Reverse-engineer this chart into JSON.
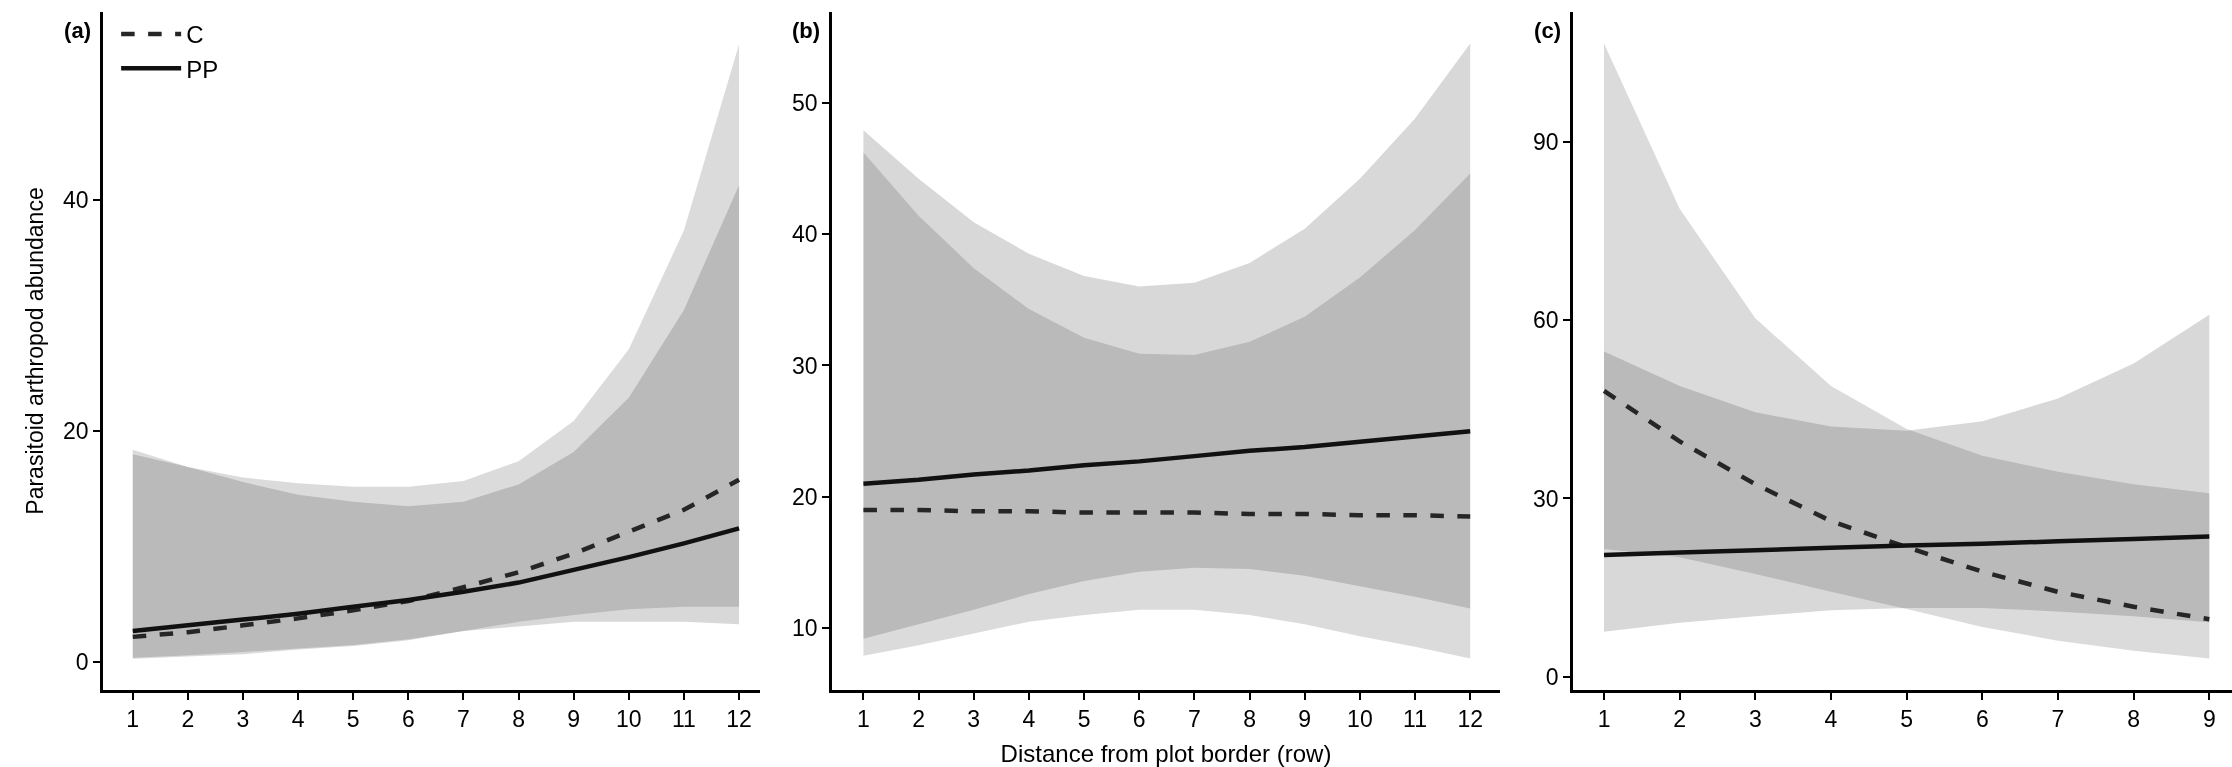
{
  "chart_data": [
    {
      "type": "line",
      "title": "(a)",
      "ylabel": "Parasitoid arthropod abundance",
      "x": [
        1,
        2,
        3,
        4,
        5,
        6,
        7,
        8,
        9,
        10,
        11,
        12
      ],
      "xlim": [
        0.46,
        12.38
      ],
      "xticks": [
        1,
        2,
        3,
        4,
        5,
        6,
        7,
        8,
        9,
        10,
        11,
        12
      ],
      "ylim": [
        -2.4,
        56.3
      ],
      "yticks": [
        0,
        20,
        40
      ],
      "grid": false,
      "legend": "top left",
      "marker": "none",
      "series": [
        {
          "name": "C",
          "color": "#262626",
          "line_style": "dashed",
          "values": [
            2.2,
            2.6,
            3.2,
            3.8,
            4.5,
            5.3,
            6.5,
            7.8,
            9.4,
            11.3,
            13.2,
            15.8
          ],
          "lower": [
            0.4,
            0.6,
            0.9,
            1.2,
            1.5,
            2.0,
            2.7,
            3.5,
            4.1,
            4.6,
            4.8,
            4.8
          ],
          "upper": [
            18.4,
            16.9,
            16.0,
            15.5,
            15.2,
            15.2,
            15.7,
            17.4,
            20.9,
            27.1,
            37.4,
            53.5
          ]
        },
        {
          "name": "PP",
          "color": "#111111",
          "line_style": "solid",
          "values": [
            2.7,
            3.2,
            3.7,
            4.2,
            4.8,
            5.4,
            6.1,
            6.9,
            8.0,
            9.1,
            10.3,
            11.6
          ],
          "lower": [
            0.3,
            0.5,
            0.7,
            1.1,
            1.4,
            1.9,
            2.7,
            3.1,
            3.5,
            3.5,
            3.5,
            3.3
          ],
          "upper": [
            18.0,
            16.9,
            15.6,
            14.5,
            13.9,
            13.5,
            13.9,
            15.4,
            18.2,
            22.9,
            30.5,
            41.3
          ]
        }
      ]
    },
    {
      "type": "line",
      "title": "(b)",
      "xlabel": "Distance from plot border (row)",
      "x": [
        1,
        2,
        3,
        4,
        5,
        6,
        7,
        8,
        9,
        10,
        11,
        12
      ],
      "xlim": [
        0.43,
        12.54
      ],
      "xticks": [
        1,
        2,
        3,
        4,
        5,
        6,
        7,
        8,
        9,
        10,
        11,
        12
      ],
      "ylim": [
        5.3,
        56.9
      ],
      "yticks": [
        10,
        20,
        30,
        40,
        50
      ],
      "grid": false,
      "legend": false,
      "marker": "none",
      "series": [
        {
          "color": "#262626",
          "line_style": "dashed",
          "values": [
            19.0,
            19.0,
            18.9,
            18.9,
            18.8,
            18.8,
            18.8,
            18.7,
            18.7,
            18.6,
            18.6,
            18.5
          ],
          "lower": [
            7.9,
            8.7,
            9.6,
            10.5,
            11.0,
            11.4,
            11.4,
            11.0,
            10.3,
            9.4,
            8.6,
            7.7
          ],
          "upper": [
            46.2,
            41.4,
            37.4,
            34.3,
            32.1,
            30.9,
            30.8,
            31.8,
            33.7,
            36.7,
            40.3,
            44.6
          ]
        },
        {
          "color": "#111111",
          "line_style": "solid",
          "values": [
            21.0,
            21.3,
            21.7,
            22.0,
            22.4,
            22.7,
            23.1,
            23.5,
            23.8,
            24.2,
            24.6,
            25.0
          ],
          "lower": [
            9.2,
            10.3,
            11.4,
            12.6,
            13.6,
            14.3,
            14.6,
            14.5,
            14.0,
            13.2,
            12.4,
            11.5
          ],
          "upper": [
            47.9,
            44.2,
            40.9,
            38.5,
            36.8,
            36.0,
            36.3,
            37.8,
            40.4,
            44.2,
            48.8,
            54.5
          ]
        }
      ]
    },
    {
      "type": "line",
      "title": "(c)",
      "x": [
        1,
        2,
        3,
        4,
        5,
        6,
        7,
        8,
        9
      ],
      "xlim": [
        0.59,
        9.3
      ],
      "xticks": [
        1,
        2,
        3,
        4,
        5,
        6,
        7,
        8,
        9
      ],
      "ylim": [
        -2.2,
        111.8
      ],
      "yticks": [
        0,
        30,
        60,
        90
      ],
      "grid": false,
      "legend": false,
      "marker": "none",
      "series": [
        {
          "color": "#262626",
          "line_style": "dashed",
          "values": [
            48.1,
            39.6,
            32.4,
            26.2,
            21.8,
            17.7,
            14.3,
            11.8,
            9.7
          ],
          "lower": [
            21.5,
            20.1,
            17.3,
            14.3,
            11.4,
            8.4,
            6.1,
            4.4,
            3.1
          ],
          "upper": [
            106.5,
            78.7,
            60.3,
            48.9,
            41.7,
            37.2,
            34.5,
            32.4,
            30.9
          ]
        },
        {
          "color": "#111111",
          "line_style": "solid",
          "values": [
            20.5,
            20.9,
            21.3,
            21.7,
            22.1,
            22.4,
            22.8,
            23.2,
            23.6
          ],
          "lower": [
            7.6,
            9.1,
            10.2,
            11.2,
            11.6,
            11.6,
            11.0,
            10.2,
            9.2
          ],
          "upper": [
            54.7,
            48.9,
            44.5,
            42.1,
            41.4,
            43.0,
            46.8,
            52.7,
            60.9
          ]
        }
      ]
    }
  ]
}
